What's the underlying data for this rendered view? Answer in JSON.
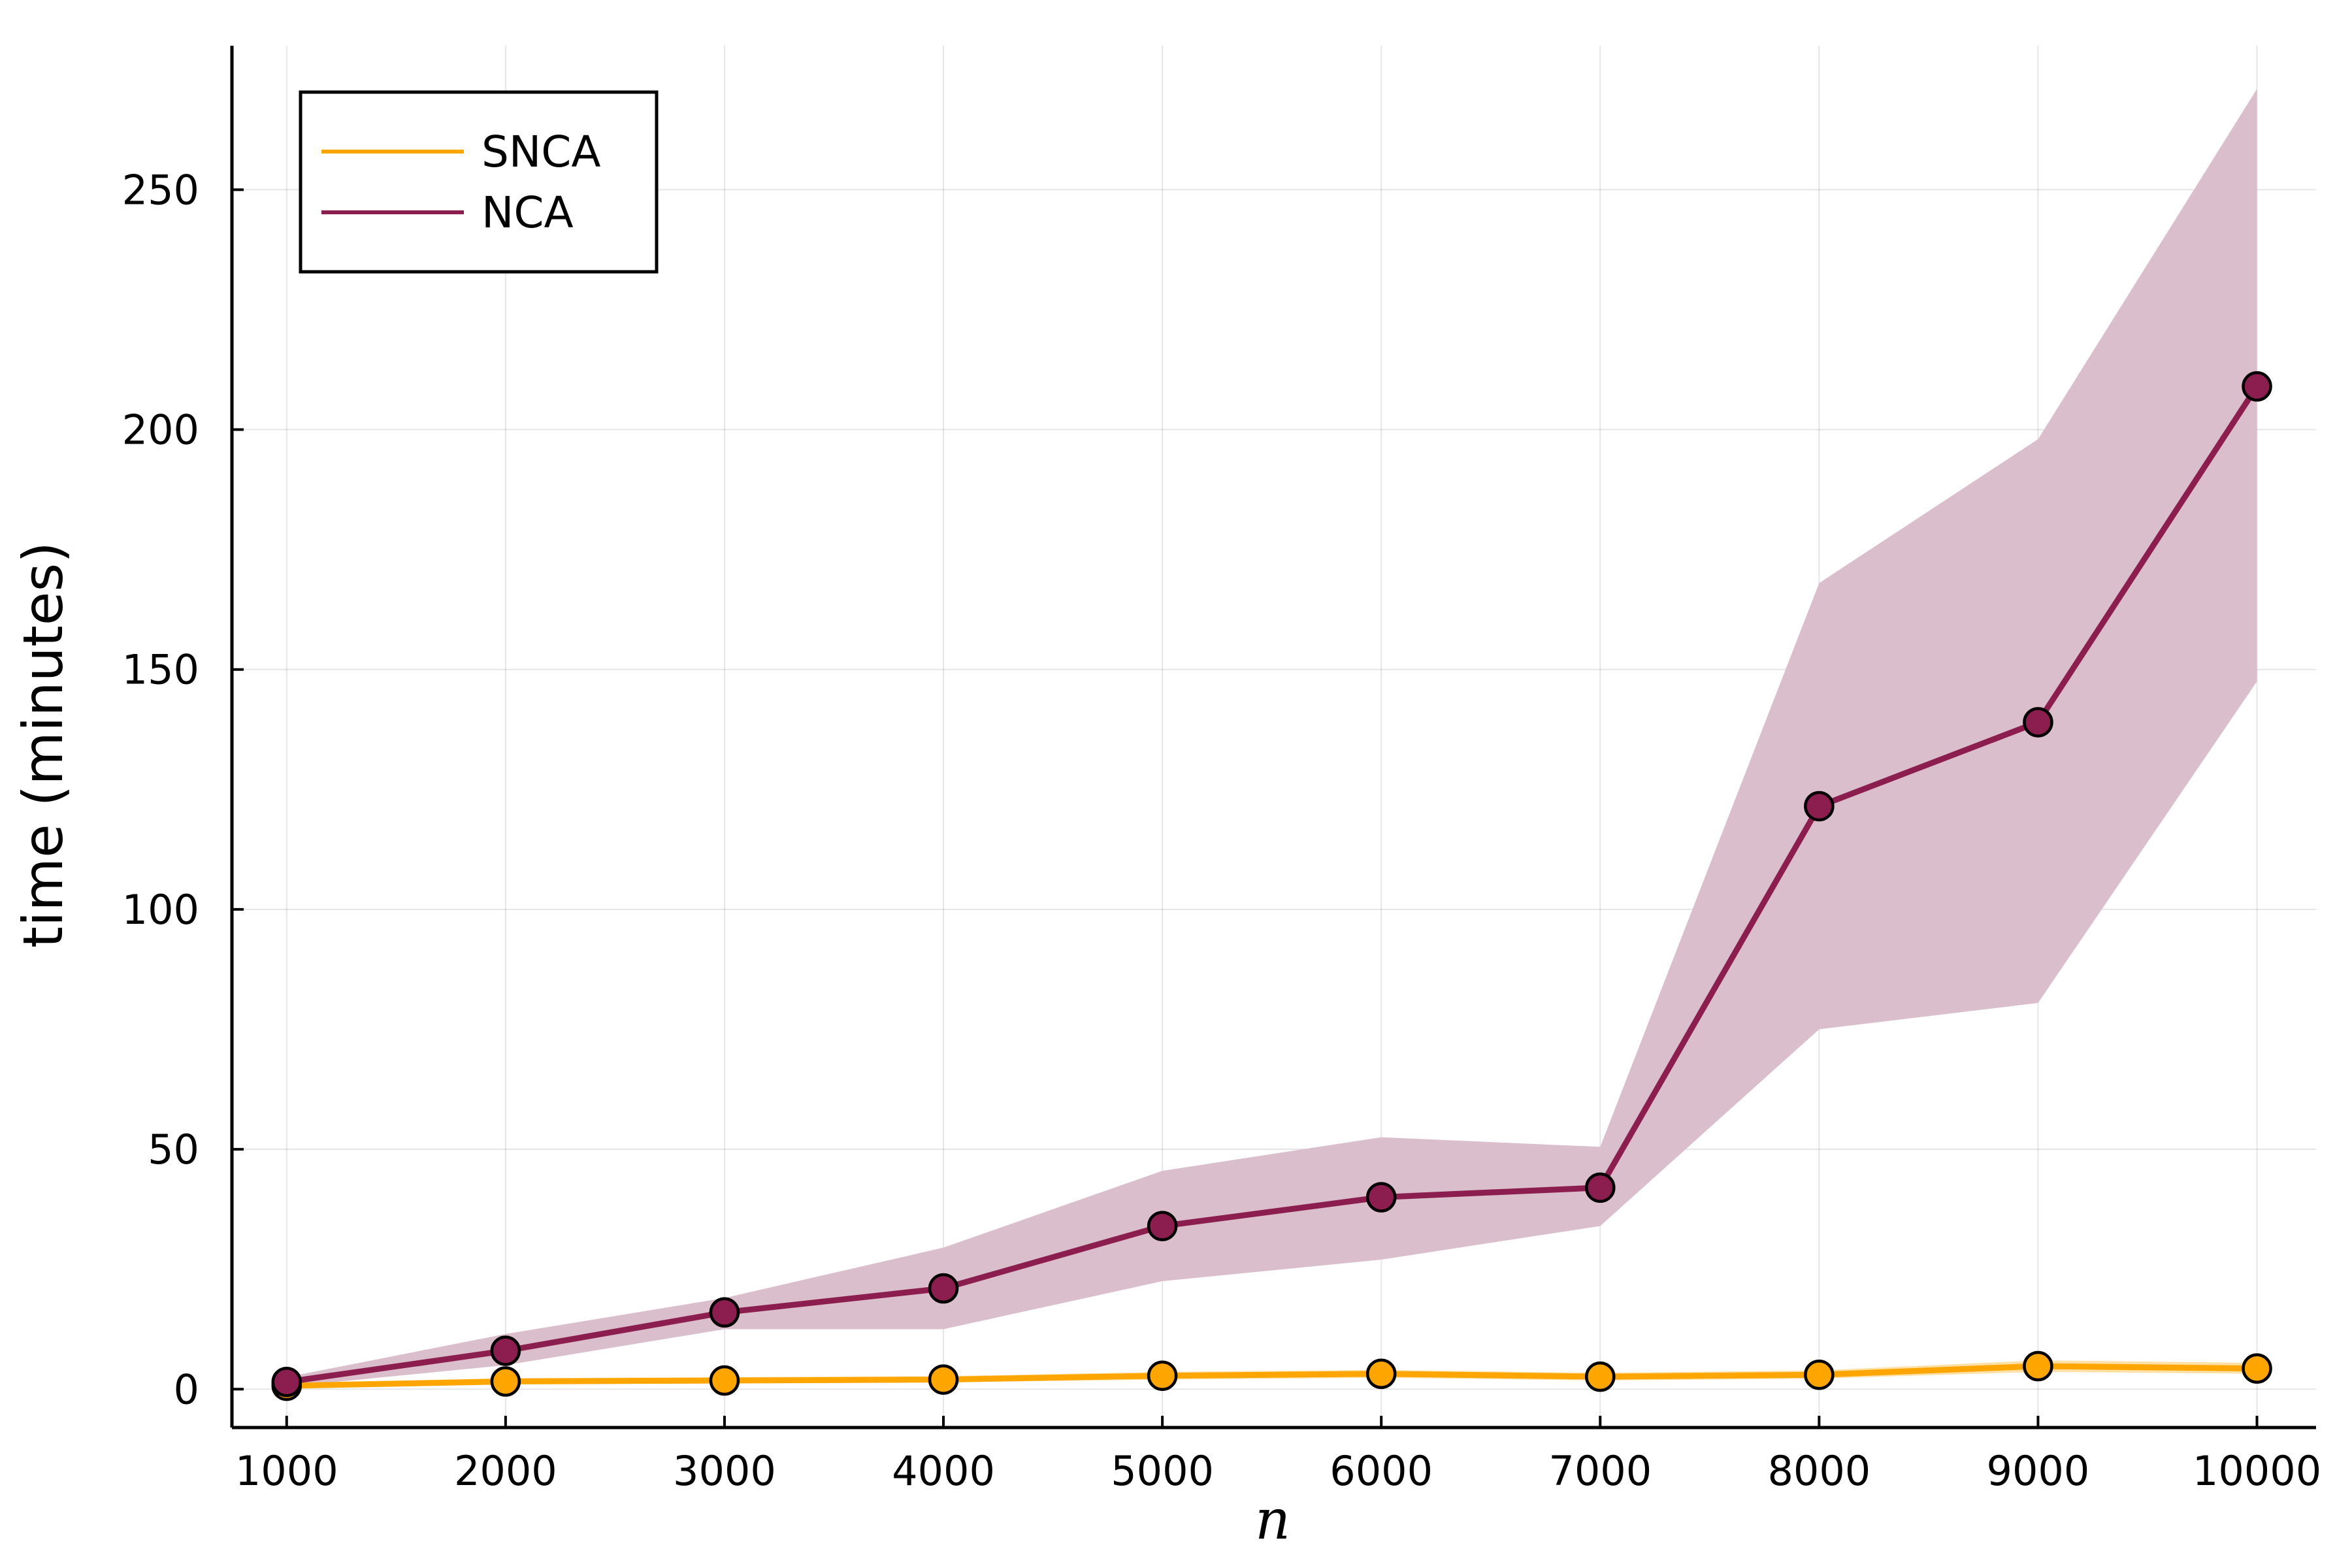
{
  "chart_data": {
    "type": "line",
    "title": "",
    "xlabel": "n",
    "ylabel": "time (minutes)",
    "x": [
      1000,
      2000,
      3000,
      4000,
      5000,
      6000,
      7000,
      8000,
      9000,
      10000
    ],
    "xticks": [
      1000,
      2000,
      3000,
      4000,
      5000,
      6000,
      7000,
      8000,
      9000,
      10000
    ],
    "yticks": [
      0,
      50,
      100,
      150,
      200,
      250
    ],
    "xlim": [
      750,
      10270
    ],
    "ylim": [
      -8,
      280
    ],
    "grid": true,
    "legend_position": "top-left",
    "series": [
      {
        "name": "SNCA",
        "color": "#FFA500",
        "values": [
          0.7,
          1.6,
          1.8,
          2.0,
          2.8,
          3.2,
          2.6,
          3.0,
          4.8,
          4.3
        ],
        "band_lower": [
          0.3,
          1.0,
          1.2,
          1.4,
          2.0,
          2.4,
          1.8,
          2.2,
          3.6,
          3.2
        ],
        "band_upper": [
          1.2,
          2.3,
          2.5,
          2.7,
          3.6,
          4.0,
          3.4,
          3.9,
          6.0,
          5.5
        ]
      },
      {
        "name": "NCA",
        "color": "#8B1E4E",
        "band_color": "#DBBECB",
        "values": [
          1.5,
          8.0,
          16.0,
          21.0,
          34.0,
          40.0,
          42.0,
          121.5,
          139.0,
          209.0
        ],
        "band_lower": [
          0.5,
          5.0,
          12.5,
          12.5,
          22.5,
          27.0,
          34.0,
          75.0,
          80.5,
          147.5
        ],
        "band_upper": [
          2.5,
          11.5,
          19.0,
          29.5,
          45.5,
          52.5,
          50.5,
          168.0,
          198.0,
          271.0
        ]
      }
    ]
  }
}
